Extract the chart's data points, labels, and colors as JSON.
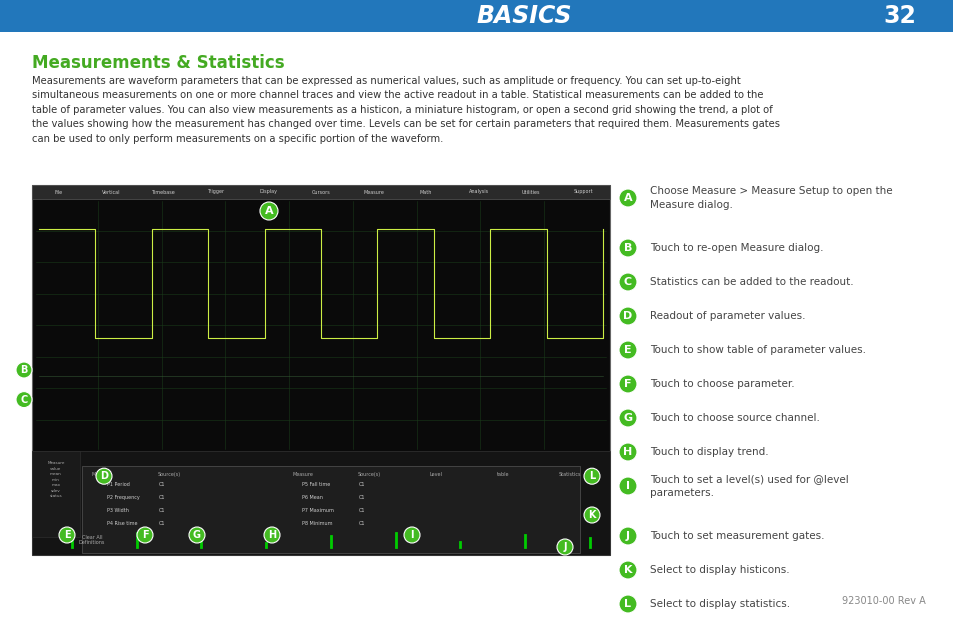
{
  "header_bg_color": "#2277bb",
  "header_text": "BASICS",
  "header_number": "32",
  "title": "Measurements & Statistics",
  "title_color": "#44aa22",
  "body_text": "Measurements are waveform parameters that can be expressed as numerical values, such as amplitude or frequency. You can set up-to-eight\nsimultaneous measurements on one or more channel traces and view the active readout in a table. Statistical measurements can be added to the\ntable of parameter values. You can also view measurements as a histicon, a miniature histogram, or open a second grid showing the trend, a plot of\nthe values showing how the measurement has changed over time. Levels can be set for certain parameters that required them. Measurements gates\ncan be used to only perform measurements on a specific portion of the waveform.",
  "body_color": "#333333",
  "bg_color": "#ffffff",
  "callouts": [
    {
      "letter": "A",
      "text": "Choose Measure > Measure Setup to open the\nMeasure dialog."
    },
    {
      "letter": "B",
      "text": "Touch to re-open Measure dialog."
    },
    {
      "letter": "C",
      "text": "Statistics can be added to the readout."
    },
    {
      "letter": "D",
      "text": "Readout of parameter values."
    },
    {
      "letter": "E",
      "text": "Touch to show table of parameter values."
    },
    {
      "letter": "F",
      "text": "Touch to choose parameter."
    },
    {
      "letter": "G",
      "text": "Touch to choose source channel."
    },
    {
      "letter": "H",
      "text": "Touch to display trend."
    },
    {
      "letter": "I",
      "text": "Touch to set a level(s) used for @level\nparameters."
    },
    {
      "letter": "J",
      "text": "Touch to set measurement gates."
    },
    {
      "letter": "K",
      "text": "Select to display histicons."
    },
    {
      "letter": "L",
      "text": "Select to display statistics."
    }
  ],
  "callout_circle_color": "#44bb22",
  "callout_text_color": "#444444",
  "footer_text": "923010-00 Rev A",
  "screen_bg": "#0a0a0a",
  "screen_border": "#555555",
  "toolbar_items": [
    "File",
    "Vertical",
    "Timebase",
    "Trigger",
    "Display",
    "Cursors",
    "Measure",
    "Math",
    "Analysis",
    "Utilities",
    "Support"
  ]
}
